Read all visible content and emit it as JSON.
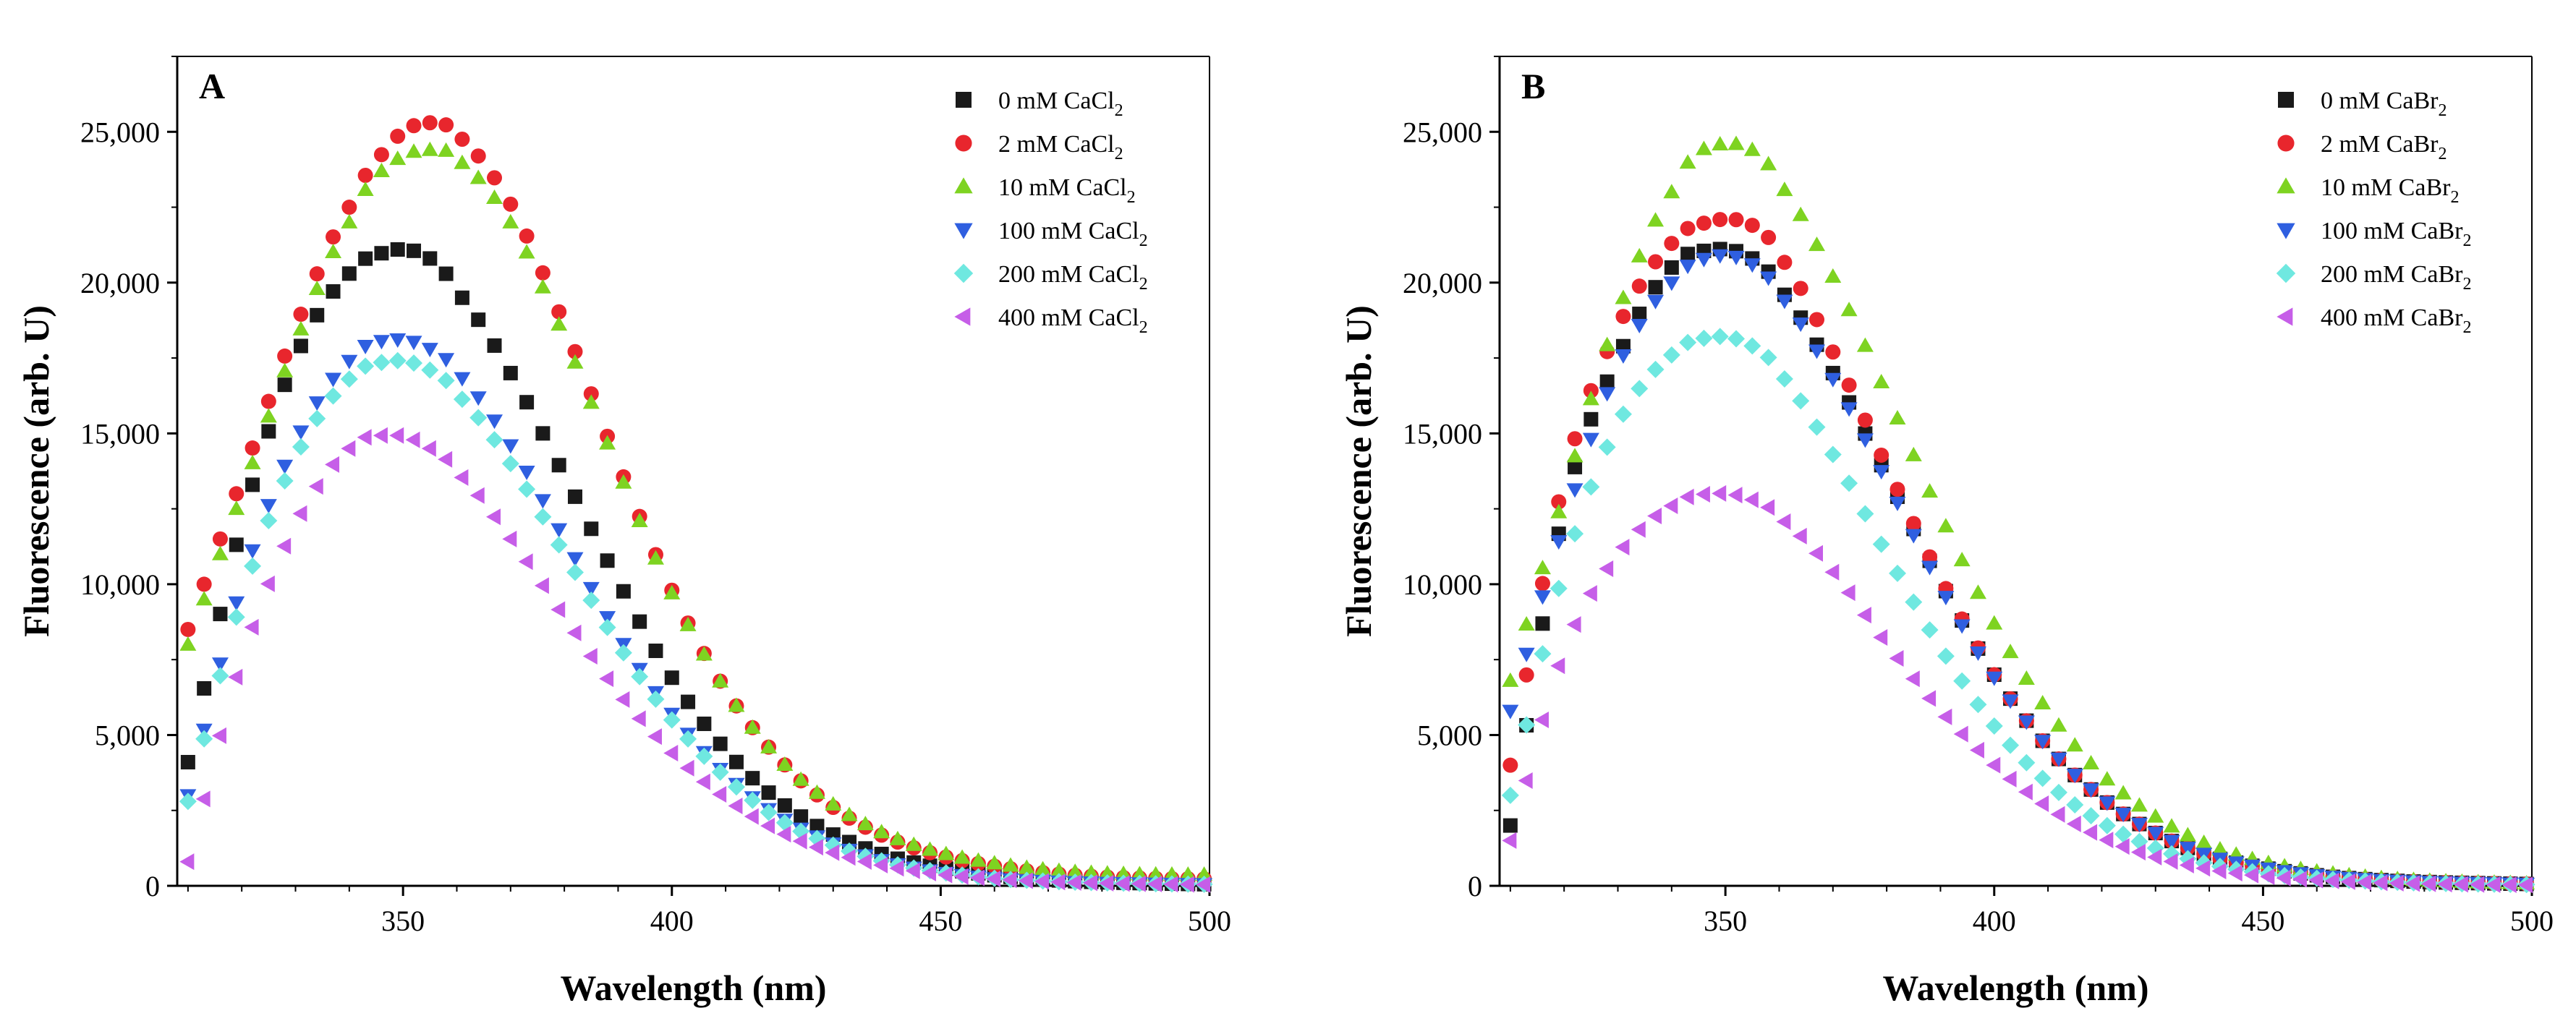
{
  "chart_data": [
    {
      "type": "scatter",
      "panel_label": "A",
      "xlabel": "Wavelength (nm)",
      "ylabel": "Fluorescence (arb. U)",
      "xlim": [
        308,
        500
      ],
      "ylim": [
        0,
        27500
      ],
      "xticks": [
        350,
        400,
        450,
        500
      ],
      "xtick_labels": [
        "350",
        "400",
        "450",
        "500"
      ],
      "yticks": [
        0,
        5000,
        10000,
        15000,
        20000,
        25000
      ],
      "ytick_labels": [
        "0",
        "5,000",
        "10,000",
        "15,000",
        "20,000",
        "25,000"
      ],
      "legend_position": "top-right",
      "series": [
        {
          "name": "0 mM CaCl",
          "subscript": "2",
          "marker": "square",
          "color": "#1a1a1a",
          "x": [
            310,
            320,
            330,
            340,
            345,
            350,
            355,
            360,
            370,
            380,
            390,
            400,
            410,
            420,
            430,
            440,
            450,
            460,
            470,
            480,
            490,
            500
          ],
          "y": [
            4100,
            12000,
            17500,
            20300,
            20900,
            21100,
            20800,
            19700,
            17000,
            13600,
            10100,
            6900,
            4500,
            2800,
            1700,
            1000,
            600,
            350,
            200,
            120,
            80,
            50
          ]
        },
        {
          "name": "2 mM CaCl",
          "subscript": "2",
          "marker": "circle",
          "color": "#e8262d",
          "x": [
            310,
            320,
            330,
            340,
            345,
            350,
            355,
            360,
            370,
            380,
            390,
            400,
            410,
            420,
            430,
            440,
            450,
            460,
            470,
            480,
            490,
            500
          ],
          "y": [
            8500,
            13500,
            18500,
            22500,
            24000,
            25000,
            25300,
            24900,
            22600,
            18600,
            14000,
            9800,
            6500,
            4200,
            2600,
            1600,
            1000,
            650,
            420,
            300,
            250,
            230
          ]
        },
        {
          "name": "10 mM CaCl",
          "subscript": "2",
          "marker": "triangle-up",
          "color": "#7ed321",
          "x": [
            310,
            320,
            330,
            340,
            345,
            350,
            355,
            360,
            370,
            380,
            390,
            400,
            410,
            420,
            430,
            440,
            450,
            460,
            470,
            480,
            490,
            500
          ],
          "y": [
            8000,
            13000,
            18000,
            22000,
            23500,
            24200,
            24400,
            24100,
            22000,
            18200,
            13800,
            9700,
            6500,
            4200,
            2700,
            1700,
            1100,
            750,
            530,
            420,
            380,
            370
          ]
        },
        {
          "name": "100 mM CaCl",
          "subscript": "2",
          "marker": "triangle-down",
          "color": "#2f5fe0",
          "x": [
            310,
            320,
            330,
            340,
            345,
            350,
            355,
            360,
            370,
            380,
            390,
            400,
            410,
            420,
            430,
            440,
            450,
            460,
            470,
            480,
            490,
            500
          ],
          "y": [
            3000,
            10000,
            14700,
            17400,
            18000,
            18100,
            17800,
            17000,
            14600,
            11500,
            8300,
            5700,
            3700,
            2300,
            1400,
            800,
            450,
            250,
            150,
            100,
            70,
            50
          ]
        },
        {
          "name": "200 mM CaCl",
          "subscript": "2",
          "marker": "diamond",
          "color": "#6fe8e0",
          "x": [
            310,
            320,
            330,
            340,
            345,
            350,
            355,
            360,
            370,
            380,
            390,
            400,
            410,
            420,
            430,
            440,
            450,
            460,
            470,
            480,
            490,
            500
          ],
          "y": [
            2800,
            9500,
            14200,
            16800,
            17300,
            17400,
            17100,
            16300,
            14000,
            11000,
            8000,
            5500,
            3600,
            2200,
            1350,
            780,
            450,
            250,
            150,
            100,
            70,
            50
          ]
        },
        {
          "name": "400 mM CaCl",
          "subscript": "2",
          "marker": "triangle-left",
          "color": "#c65ee8",
          "x": [
            310,
            320,
            330,
            340,
            345,
            350,
            355,
            360,
            370,
            380,
            390,
            400,
            410,
            420,
            430,
            440,
            450,
            460,
            470,
            480,
            490,
            500
          ],
          "y": [
            800,
            7500,
            12000,
            14500,
            14900,
            14900,
            14500,
            13700,
            11500,
            8900,
            6400,
            4400,
            2900,
            1800,
            1100,
            650,
            380,
            230,
            140,
            90,
            60,
            40
          ]
        }
      ]
    },
    {
      "type": "scatter",
      "panel_label": "B",
      "xlabel": "Wavelength (nm)",
      "ylabel": "Fluorescence (arb. U)",
      "xlim": [
        308,
        500
      ],
      "ylim": [
        0,
        27500
      ],
      "xticks": [
        350,
        400,
        450,
        500
      ],
      "xtick_labels": [
        "350",
        "400",
        "450",
        "500"
      ],
      "yticks": [
        0,
        5000,
        10000,
        15000,
        20000,
        25000
      ],
      "ytick_labels": [
        "0",
        "5,000",
        "10,000",
        "15,000",
        "20,000",
        "25,000"
      ],
      "legend_position": "top-right",
      "series": [
        {
          "name": "0 mM CaBr",
          "subscript": "2",
          "marker": "square",
          "color": "#1a1a1a",
          "x": [
            310,
            320,
            330,
            340,
            345,
            350,
            355,
            360,
            370,
            380,
            390,
            400,
            410,
            420,
            430,
            440,
            450,
            460,
            470,
            480,
            490,
            500
          ],
          "y": [
            2000,
            12500,
            17500,
            20500,
            21000,
            21100,
            20800,
            19800,
            17000,
            13600,
            10100,
            7000,
            4600,
            2900,
            1750,
            1000,
            600,
            350,
            210,
            130,
            90,
            60
          ]
        },
        {
          "name": "2 mM CaBr",
          "subscript": "2",
          "marker": "circle",
          "color": "#e8262d",
          "x": [
            310,
            320,
            330,
            340,
            345,
            350,
            355,
            360,
            370,
            380,
            390,
            400,
            410,
            420,
            430,
            440,
            450,
            460,
            470,
            480,
            490,
            500
          ],
          "y": [
            4000,
            13500,
            18500,
            21300,
            21900,
            22100,
            21900,
            20900,
            17700,
            13900,
            10200,
            7000,
            4600,
            2900,
            1750,
            1000,
            600,
            350,
            210,
            130,
            90,
            60
          ]
        },
        {
          "name": "10 mM CaBr",
          "subscript": "2",
          "marker": "triangle-up",
          "color": "#7ed321",
          "x": [
            310,
            320,
            330,
            340,
            345,
            350,
            355,
            360,
            370,
            380,
            390,
            400,
            410,
            420,
            430,
            440,
            450,
            460,
            470,
            480,
            490,
            500
          ],
          "y": [
            6800,
            13000,
            19000,
            23000,
            24300,
            24600,
            24400,
            23300,
            20200,
            16300,
            12300,
            8700,
            5800,
            3700,
            2300,
            1350,
            800,
            480,
            290,
            180,
            120,
            80
          ]
        },
        {
          "name": "100 mM CaBr",
          "subscript": "2",
          "marker": "triangle-down",
          "color": "#2f5fe0",
          "x": [
            310,
            320,
            330,
            340,
            345,
            350,
            355,
            360,
            370,
            380,
            390,
            400,
            410,
            420,
            430,
            440,
            450,
            460,
            470,
            480,
            490,
            500
          ],
          "y": [
            5800,
            12000,
            17200,
            20000,
            20700,
            20900,
            20600,
            19600,
            16800,
            13400,
            9900,
            6900,
            4600,
            2900,
            1750,
            1000,
            600,
            350,
            210,
            130,
            90,
            60
          ]
        },
        {
          "name": "200 mM CaBr",
          "subscript": "2",
          "marker": "diamond",
          "color": "#6fe8e0",
          "x": [
            310,
            320,
            330,
            340,
            345,
            350,
            355,
            360,
            370,
            380,
            390,
            400,
            410,
            420,
            430,
            440,
            450,
            460,
            470,
            480,
            490,
            500
          ],
          "y": [
            3000,
            10500,
            15300,
            17600,
            18100,
            18200,
            17900,
            17000,
            14300,
            11000,
            7900,
            5300,
            3400,
            2100,
            1250,
            720,
            420,
            250,
            150,
            90,
            60,
            40
          ]
        },
        {
          "name": "400 mM CaBr",
          "subscript": "2",
          "marker": "triangle-left",
          "color": "#c65ee8",
          "x": [
            310,
            320,
            330,
            340,
            345,
            350,
            355,
            360,
            370,
            380,
            390,
            400,
            410,
            420,
            430,
            440,
            450,
            460,
            470,
            480,
            490,
            500
          ],
          "y": [
            1500,
            7800,
            11000,
            12600,
            12950,
            13000,
            12800,
            12200,
            10400,
            8000,
            5800,
            4000,
            2600,
            1600,
            950,
            550,
            320,
            190,
            110,
            70,
            45,
            30
          ]
        }
      ]
    }
  ]
}
